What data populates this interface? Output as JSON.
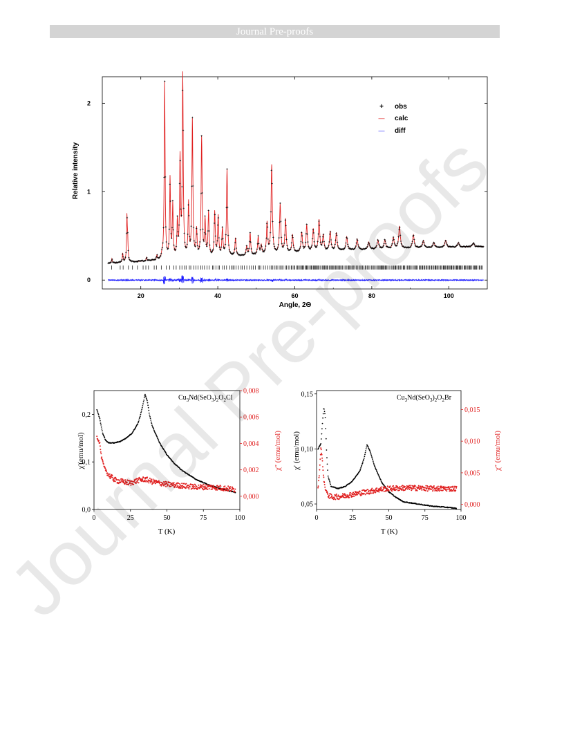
{
  "banner": {
    "text": "Journal Pre-proofs"
  },
  "watermark": {
    "text": "Journal Pre-proofs"
  },
  "chart_data": [
    {
      "type": "line",
      "title": "",
      "xlabel": "Angle, 2Θ",
      "ylabel": "Relative intensity",
      "xlim": [
        10,
        110
      ],
      "ylim": [
        -0.1,
        2.3
      ],
      "x_ticks": [
        20,
        40,
        60,
        80,
        100
      ],
      "y_ticks": [
        0,
        1,
        2
      ],
      "legend_position": "top-right",
      "legend": [
        {
          "marker": "+",
          "label": "obs",
          "color": "#000000"
        },
        {
          "marker": "—",
          "label": "calc",
          "color": "#e02020"
        },
        {
          "marker": "—",
          "label": "diff",
          "color": "#1a1aff"
        }
      ],
      "series": [
        {
          "name": "obs",
          "color": "#000000",
          "style": "points"
        },
        {
          "name": "calc",
          "color": "#e02020",
          "style": "line"
        },
        {
          "name": "diff",
          "color": "#1a1aff",
          "style": "line",
          "offset": 0
        }
      ],
      "background_profile": [
        [
          11.5,
          0.19
        ],
        [
          20,
          0.21
        ],
        [
          30,
          0.24
        ],
        [
          40,
          0.26
        ],
        [
          50,
          0.28
        ],
        [
          60,
          0.31
        ],
        [
          70,
          0.33
        ],
        [
          80,
          0.35
        ],
        [
          90,
          0.36
        ],
        [
          100,
          0.37
        ],
        [
          109,
          0.38
        ]
      ],
      "peaks": [
        [
          12.5,
          0.05
        ],
        [
          15.3,
          0.1
        ],
        [
          16.4,
          0.5
        ],
        [
          16.6,
          0.2
        ],
        [
          21.5,
          0.04
        ],
        [
          24.2,
          0.05
        ],
        [
          25.5,
          0.05
        ],
        [
          26.2,
          2.0
        ],
        [
          27.6,
          0.9
        ],
        [
          28.3,
          0.6
        ],
        [
          29.5,
          0.4
        ],
        [
          30.2,
          1.1
        ],
        [
          30.9,
          2.05
        ],
        [
          32.4,
          0.6
        ],
        [
          33.4,
          1.55
        ],
        [
          34.5,
          0.3
        ],
        [
          35.8,
          1.35
        ],
        [
          36.7,
          0.4
        ],
        [
          37.6,
          0.5
        ],
        [
          39.2,
          0.5
        ],
        [
          40.1,
          0.45
        ],
        [
          41.2,
          0.3
        ],
        [
          42.4,
          0.98
        ],
        [
          44.6,
          0.2
        ],
        [
          47.5,
          0.1
        ],
        [
          48.4,
          0.25
        ],
        [
          50.5,
          0.2
        ],
        [
          51.3,
          0.1
        ],
        [
          52.8,
          0.35
        ],
        [
          54.0,
          1.0
        ],
        [
          56.2,
          0.55
        ],
        [
          57.6,
          0.38
        ],
        [
          59.4,
          0.2
        ],
        [
          61.8,
          0.22
        ],
        [
          63.1,
          0.3
        ],
        [
          64.8,
          0.25
        ],
        [
          66.3,
          0.35
        ],
        [
          67.4,
          0.18
        ],
        [
          69.2,
          0.22
        ],
        [
          70.8,
          0.2
        ],
        [
          73.5,
          0.15
        ],
        [
          76.2,
          0.12
        ],
        [
          79.2,
          0.08
        ],
        [
          81.6,
          0.1
        ],
        [
          83.4,
          0.1
        ],
        [
          85.6,
          0.12
        ],
        [
          87.2,
          0.25
        ],
        [
          90.8,
          0.15
        ],
        [
          93.4,
          0.08
        ],
        [
          96.1,
          0.06
        ],
        [
          99.2,
          0.08
        ],
        [
          102.5,
          0.05
        ],
        [
          106.4,
          0.04
        ]
      ],
      "reflection_markers": "vertical ticks at Bragg positions between y = 0.12 and 0.17"
    },
    {
      "type": "scatter",
      "title": "Cu3Nd(SeO3)2O2Cl",
      "xlabel": "T (K)",
      "ylabel_left": "χ'(emu/mol)",
      "ylabel_right": "χ'' (emu/mol)",
      "xlim": [
        0,
        100
      ],
      "ylim_left": [
        0.0,
        0.25
      ],
      "ylim_right": [
        -0.001,
        0.008
      ],
      "x_ticks": [
        "0",
        "25",
        "50",
        "75",
        "100"
      ],
      "y_ticks_left": [
        "0,0",
        "0,1",
        "0,2"
      ],
      "y_ticks_right": [
        "0,000",
        "0,002",
        "0,004",
        "0,006",
        "0,008"
      ],
      "series": [
        {
          "name": "χ'",
          "axis": "left",
          "color": "#000000",
          "points": [
            [
              2,
              0.21
            ],
            [
              4,
              0.19
            ],
            [
              6,
              0.16
            ],
            [
              8,
              0.145
            ],
            [
              10,
              0.14
            ],
            [
              14,
              0.14
            ],
            [
              18,
              0.143
            ],
            [
              22,
              0.15
            ],
            [
              26,
              0.16
            ],
            [
              28,
              0.17
            ],
            [
              30,
              0.18
            ],
            [
              32,
              0.2
            ],
            [
              33.5,
              0.22
            ],
            [
              35,
              0.242
            ],
            [
              36.5,
              0.228
            ],
            [
              38,
              0.2
            ],
            [
              40,
              0.175
            ],
            [
              45,
              0.14
            ],
            [
              50,
              0.115
            ],
            [
              55,
              0.097
            ],
            [
              60,
              0.083
            ],
            [
              70,
              0.063
            ],
            [
              80,
              0.05
            ],
            [
              90,
              0.041
            ],
            [
              97,
              0.036
            ]
          ]
        },
        {
          "name": "χ''",
          "axis": "right",
          "color": "#e02020",
          "points": [
            [
              2,
              0.0045
            ],
            [
              4,
              0.004
            ],
            [
              5,
              0.003
            ],
            [
              7,
              0.0022
            ],
            [
              10,
              0.0016
            ],
            [
              15,
              0.0012
            ],
            [
              20,
              0.0011
            ],
            [
              25,
              0.001
            ],
            [
              30,
              0.0012
            ],
            [
              35,
              0.0013
            ],
            [
              40,
              0.0011
            ],
            [
              50,
              0.0009
            ],
            [
              60,
              0.0008
            ],
            [
              70,
              0.0007
            ],
            [
              80,
              0.0007
            ],
            [
              90,
              0.0006
            ],
            [
              97,
              0.0005
            ]
          ]
        }
      ]
    },
    {
      "type": "scatter",
      "title": "Cu3Nd(SeO3)2O2Br",
      "xlabel": "T (K)",
      "ylabel_left": "χ' (emu/mol)",
      "ylabel_right": "χ'' (emu/mol)",
      "xlim": [
        0,
        100
      ],
      "ylim_left": [
        0.045,
        0.153
      ],
      "ylim_right": [
        -0.0008,
        0.018
      ],
      "x_ticks": [
        "0",
        "25",
        "50",
        "75",
        "100"
      ],
      "y_ticks_left": [
        "0,05",
        "0,10",
        "0,15"
      ],
      "y_ticks_right": [
        "0,000",
        "0,005",
        "0,010",
        "0,015"
      ],
      "series": [
        {
          "name": "χ'",
          "axis": "left",
          "color": "#000000",
          "points": [
            [
              1,
              0.1
            ],
            [
              3,
              0.105
            ],
            [
              4,
              0.122
            ],
            [
              5,
              0.138
            ],
            [
              6,
              0.13
            ],
            [
              7,
              0.095
            ],
            [
              8,
              0.075
            ],
            [
              10,
              0.066
            ],
            [
              15,
              0.064
            ],
            [
              20,
              0.066
            ],
            [
              25,
              0.071
            ],
            [
              30,
              0.08
            ],
            [
              33,
              0.092
            ],
            [
              35,
              0.104
            ],
            [
              37,
              0.098
            ],
            [
              40,
              0.085
            ],
            [
              45,
              0.07
            ],
            [
              50,
              0.061
            ],
            [
              55,
              0.056
            ],
            [
              60,
              0.052
            ],
            [
              70,
              0.05
            ],
            [
              80,
              0.048
            ],
            [
              90,
              0.047
            ],
            [
              97,
              0.046
            ]
          ]
        },
        {
          "name": "χ''",
          "axis": "right",
          "color": "#e02020",
          "points": [
            [
              1,
              0.0025
            ],
            [
              2,
              0.005
            ],
            [
              3,
              0.009
            ],
            [
              4,
              0.007
            ],
            [
              5,
              0.004
            ],
            [
              6,
              0.0025
            ],
            [
              8,
              0.0015
            ],
            [
              10,
              0.0012
            ],
            [
              15,
              0.0012
            ],
            [
              20,
              0.0014
            ],
            [
              25,
              0.0016
            ],
            [
              30,
              0.0018
            ],
            [
              35,
              0.002
            ],
            [
              40,
              0.0022
            ],
            [
              45,
              0.0024
            ],
            [
              50,
              0.0025
            ],
            [
              60,
              0.0026
            ],
            [
              70,
              0.0026
            ],
            [
              80,
              0.0025
            ],
            [
              90,
              0.0025
            ],
            [
              97,
              0.0025
            ]
          ]
        }
      ]
    }
  ]
}
